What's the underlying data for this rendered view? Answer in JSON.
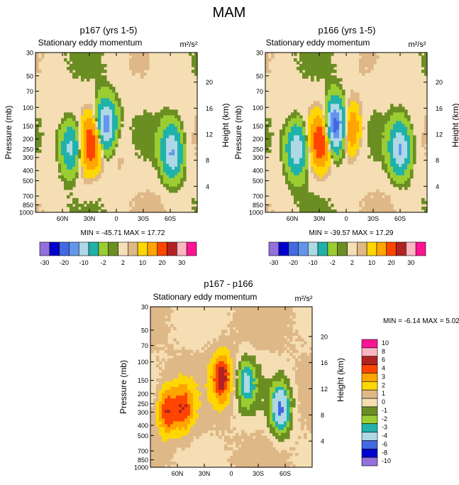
{
  "figure": {
    "title": "MAM"
  },
  "chart_data": [
    {
      "type": "heatmap",
      "panel": "top-left",
      "title": "p167 (yrs 1-5)",
      "subtitle_left": "Stationary eddy momentum",
      "units": "m²/s²",
      "ylabel": "Pressure (mb)",
      "ylabel_right": "Height (km)",
      "xlim": [
        90,
        -90
      ],
      "ylim": [
        1000,
        30
      ],
      "x_ticks": [
        60,
        30,
        0,
        -30,
        -60
      ],
      "x_tick_labels": [
        "60N",
        "30N",
        "0",
        "30S",
        "60S"
      ],
      "y_ticks": [
        30,
        50,
        70,
        100,
        150,
        200,
        250,
        300,
        400,
        500,
        700,
        850,
        1000
      ],
      "y_tick_labels": [
        "30",
        "50",
        "70",
        "100",
        "150",
        "200",
        "250",
        "300",
        "400",
        "500",
        "700",
        "850",
        "1000"
      ],
      "height_ticks_km": [
        20,
        16,
        12,
        8,
        4
      ],
      "height_tick_labels": [
        "20",
        "16",
        "12",
        "8",
        "4"
      ],
      "stats_text": "MIN = -45.71  MAX =  17.72",
      "min": -45.71,
      "max": 17.72,
      "levels": [
        -30,
        -25,
        -20,
        -15,
        -10,
        -5,
        -2,
        -1,
        1,
        2,
        5,
        10,
        15,
        20,
        25,
        30
      ],
      "colorbar_labels": [
        "-30",
        "-20",
        "-10",
        "-2",
        "2",
        "10",
        "20",
        "30"
      ],
      "features": [
        {
          "x": 51,
          "p": 240,
          "value": -12
        },
        {
          "x": 27,
          "p": 220,
          "value": 15
        },
        {
          "x": 12,
          "p": 150,
          "value": -20
        },
        {
          "x": -2,
          "p": 260,
          "value": 2
        },
        {
          "x": -62,
          "p": 270,
          "value": -15
        },
        {
          "x": -48,
          "p": 40,
          "value": -2
        },
        {
          "x": 38,
          "p": 500,
          "value": 1
        }
      ]
    },
    {
      "type": "heatmap",
      "panel": "top-right",
      "title": "p166 (yrs 1-5)",
      "subtitle_left": "Stationary eddy momentum",
      "units": "m²/s²",
      "ylabel": "Pressure (mb)",
      "ylabel_right": "Height (km)",
      "xlim": [
        90,
        -90
      ],
      "ylim": [
        1000,
        30
      ],
      "x_ticks": [
        60,
        30,
        0,
        -30,
        -60
      ],
      "x_tick_labels": [
        "60N",
        "30N",
        "0",
        "30S",
        "60S"
      ],
      "y_ticks": [
        30,
        50,
        70,
        100,
        150,
        200,
        250,
        300,
        400,
        500,
        700,
        850,
        1000
      ],
      "y_tick_labels": [
        "30",
        "50",
        "70",
        "100",
        "150",
        "200",
        "250",
        "300",
        "400",
        "500",
        "700",
        "850",
        "1000"
      ],
      "height_ticks_km": [
        20,
        16,
        12,
        8,
        4
      ],
      "height_tick_labels": [
        "20",
        "16",
        "12",
        "8",
        "4"
      ],
      "stats_text": "MIN = -39.57  MAX =  17.29",
      "min": -39.57,
      "max": 17.29,
      "levels": [
        -30,
        -25,
        -20,
        -15,
        -10,
        -5,
        -2,
        -1,
        1,
        2,
        5,
        10,
        15,
        20,
        25,
        30
      ],
      "colorbar_labels": [
        "-30",
        "-20",
        "-10",
        "-2",
        "2",
        "10",
        "20",
        "30"
      ],
      "features": [
        {
          "x": 55,
          "p": 250,
          "value": -15
        },
        {
          "x": 28,
          "p": 210,
          "value": 15
        },
        {
          "x": 12,
          "p": 150,
          "value": -25
        },
        {
          "x": -5,
          "p": 160,
          "value": 10
        },
        {
          "x": -60,
          "p": 250,
          "value": -15
        },
        {
          "x": -45,
          "p": 40,
          "value": -2
        }
      ]
    },
    {
      "type": "heatmap",
      "panel": "bottom",
      "title": "p167 - p166",
      "subtitle_left": "Stationary eddy momentum",
      "units": "m²/s²",
      "ylabel": "Pressure (mb)",
      "ylabel_right": "Height (km)",
      "xlim": [
        90,
        -90
      ],
      "ylim": [
        1000,
        30
      ],
      "x_ticks": [
        60,
        30,
        0,
        -30,
        -60
      ],
      "x_tick_labels": [
        "60N",
        "30N",
        "0",
        "30S",
        "60S"
      ],
      "y_ticks": [
        30,
        50,
        70,
        100,
        150,
        200,
        250,
        300,
        400,
        500,
        700,
        850,
        1000
      ],
      "y_tick_labels": [
        "30",
        "50",
        "70",
        "100",
        "150",
        "200",
        "250",
        "300",
        "400",
        "500",
        "700",
        "850",
        "1000"
      ],
      "height_ticks_km": [
        20,
        16,
        12,
        8,
        4
      ],
      "height_tick_labels": [
        "20",
        "16",
        "12",
        "8",
        "4"
      ],
      "stats_text": "MIN =  -6.14  MAX =   5.02",
      "min": -6.14,
      "max": 5.02,
      "levels": [
        -10,
        -8,
        -6,
        -4,
        -3,
        -2,
        -1,
        0,
        1,
        2,
        3,
        4,
        6,
        8,
        10
      ],
      "colorbar_labels": [
        "10",
        "8",
        "6",
        "4",
        "3",
        "2",
        "1",
        "0",
        "-1",
        "-2",
        "-3",
        "-4",
        "-6",
        "-8",
        "-10"
      ],
      "features": [
        {
          "x": 72,
          "p": 290,
          "value": 4
        },
        {
          "x": 53,
          "p": 280,
          "value": 3.5
        },
        {
          "x": 10,
          "p": 140,
          "value": 4.5
        },
        {
          "x": -17,
          "p": 160,
          "value": -4
        },
        {
          "x": -55,
          "p": 280,
          "value": -6
        }
      ]
    }
  ],
  "colors": {
    "full_colorbar": [
      "#9370db",
      "#0000cd",
      "#4169e1",
      "#6495ed",
      "#add8e6",
      "#20b2aa",
      "#9acd32",
      "#6b8e23",
      "#f5deb3",
      "#deb887",
      "#ffd700",
      "#ffa500",
      "#ff4500",
      "#b22222",
      "#ffb6c1",
      "#ff1493"
    ],
    "diff_colorbar": [
      "#9370db",
      "#0000cd",
      "#4169e1",
      "#add8e6",
      "#20b2aa",
      "#9acd32",
      "#6b8e23",
      "#f5deb3",
      "#deb887",
      "#ffd700",
      "#ffa500",
      "#ff4500",
      "#b22222",
      "#ffb6c1",
      "#ff1493"
    ],
    "background_field": "#f5deb3",
    "negative_field": "#6b8e23"
  }
}
